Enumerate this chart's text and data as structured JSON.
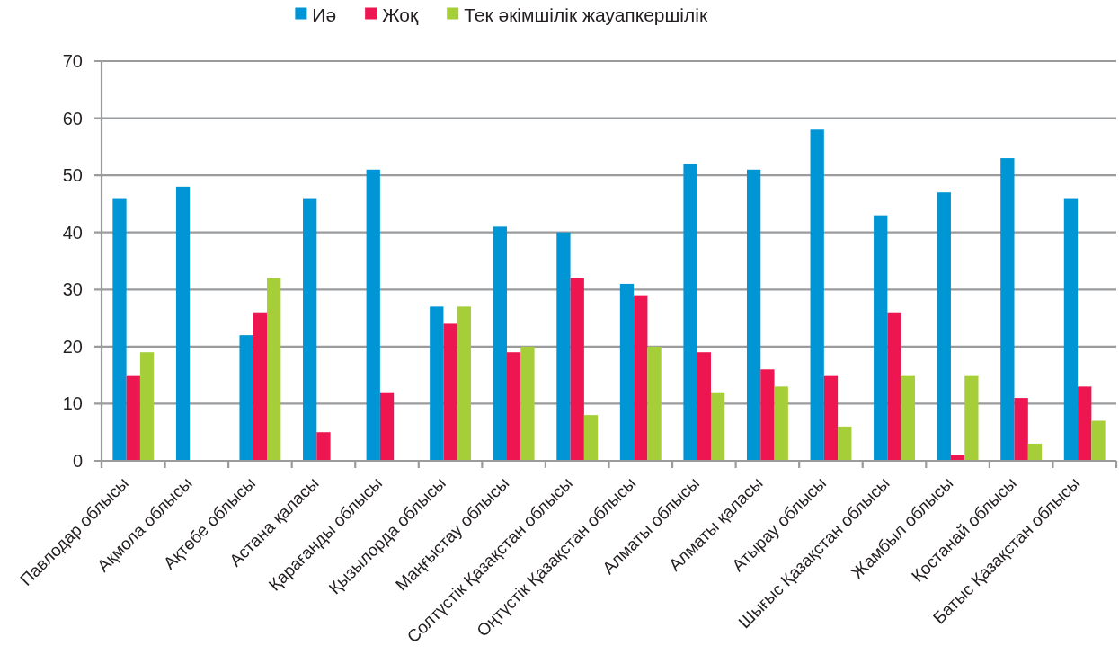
{
  "chart_data": {
    "type": "bar",
    "categories": [
      "Павлодар облысы",
      "Ақмола облысы",
      "Ақтөбе облысы",
      "Астана қаласы",
      "Қарағанды облысы",
      "Қызылорда облысы",
      "Маңғыстау облысы",
      "Солтүстік Қазақстан облысы",
      "Оңтүстік Қазақстан облысы",
      "Алматы облысы",
      "Алматы қаласы",
      "Атырау облысы",
      "Шығыс Қазақстан облысы",
      "Жамбыл облысы",
      "Қостанай облысы",
      "Батыс Қазақстан облысы"
    ],
    "series": [
      {
        "name": "Иә",
        "color": "#0096d6",
        "values": [
          46,
          48,
          22,
          46,
          51,
          27,
          41,
          40,
          31,
          52,
          51,
          58,
          43,
          47,
          53,
          46
        ]
      },
      {
        "name": "Жоқ",
        "color": "#ed1651",
        "values": [
          15,
          null,
          26,
          5,
          12,
          24,
          19,
          32,
          29,
          19,
          16,
          15,
          26,
          1,
          11,
          13
        ]
      },
      {
        "name": "Тек әкімшілік жауапкершілік",
        "color": "#a6ce39",
        "values": [
          19,
          null,
          32,
          null,
          null,
          27,
          20,
          8,
          20,
          12,
          13,
          6,
          15,
          15,
          3,
          7
        ]
      }
    ],
    "ylim": [
      0,
      70
    ],
    "yticks": [
      0,
      10,
      20,
      30,
      40,
      50,
      60,
      70
    ],
    "grid": "y",
    "legend": "top"
  }
}
